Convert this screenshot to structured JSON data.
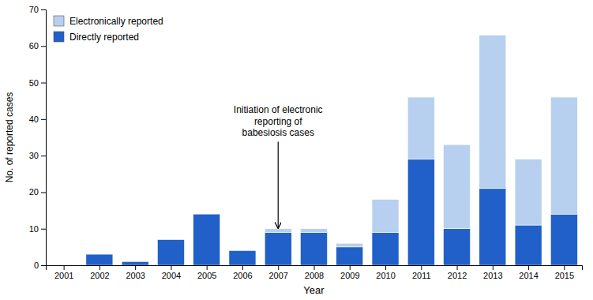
{
  "chart_data": {
    "type": "bar",
    "stacked": true,
    "xlabel": "Year",
    "ylabel": "No. of reported cases",
    "x": [
      2001,
      2002,
      2003,
      2004,
      2005,
      2006,
      2007,
      2008,
      2009,
      2010,
      2011,
      2012,
      2013,
      2014,
      2015
    ],
    "series": [
      {
        "name": "Directly reported",
        "color": "#2060c8",
        "values": [
          0,
          3,
          1,
          7,
          14,
          4,
          9,
          9,
          5,
          9,
          29,
          10,
          21,
          11,
          14
        ]
      },
      {
        "name": "Electronically reported",
        "color": "#b8d0ef",
        "values": [
          0,
          0,
          0,
          0,
          0,
          0,
          1,
          1,
          1,
          9,
          17,
          23,
          42,
          18,
          32
        ]
      }
    ],
    "xlim": [
      2000.5,
      2015.5
    ],
    "xticks": [
      2001,
      2002,
      2003,
      2004,
      2005,
      2006,
      2007,
      2008,
      2009,
      2010,
      2011,
      2012,
      2013,
      2014,
      2015
    ],
    "ylim": [
      0,
      70
    ],
    "yticks": [
      0,
      10,
      20,
      30,
      40,
      50,
      60,
      70
    ],
    "grid": false,
    "legend": "upper left",
    "annotations": [
      {
        "text": "Initiation of electronic\nreporting of\nbabesiosis cases",
        "x": 2007,
        "y": 10.2,
        "text_x": 2007.0,
        "text_y": 44
      }
    ]
  }
}
